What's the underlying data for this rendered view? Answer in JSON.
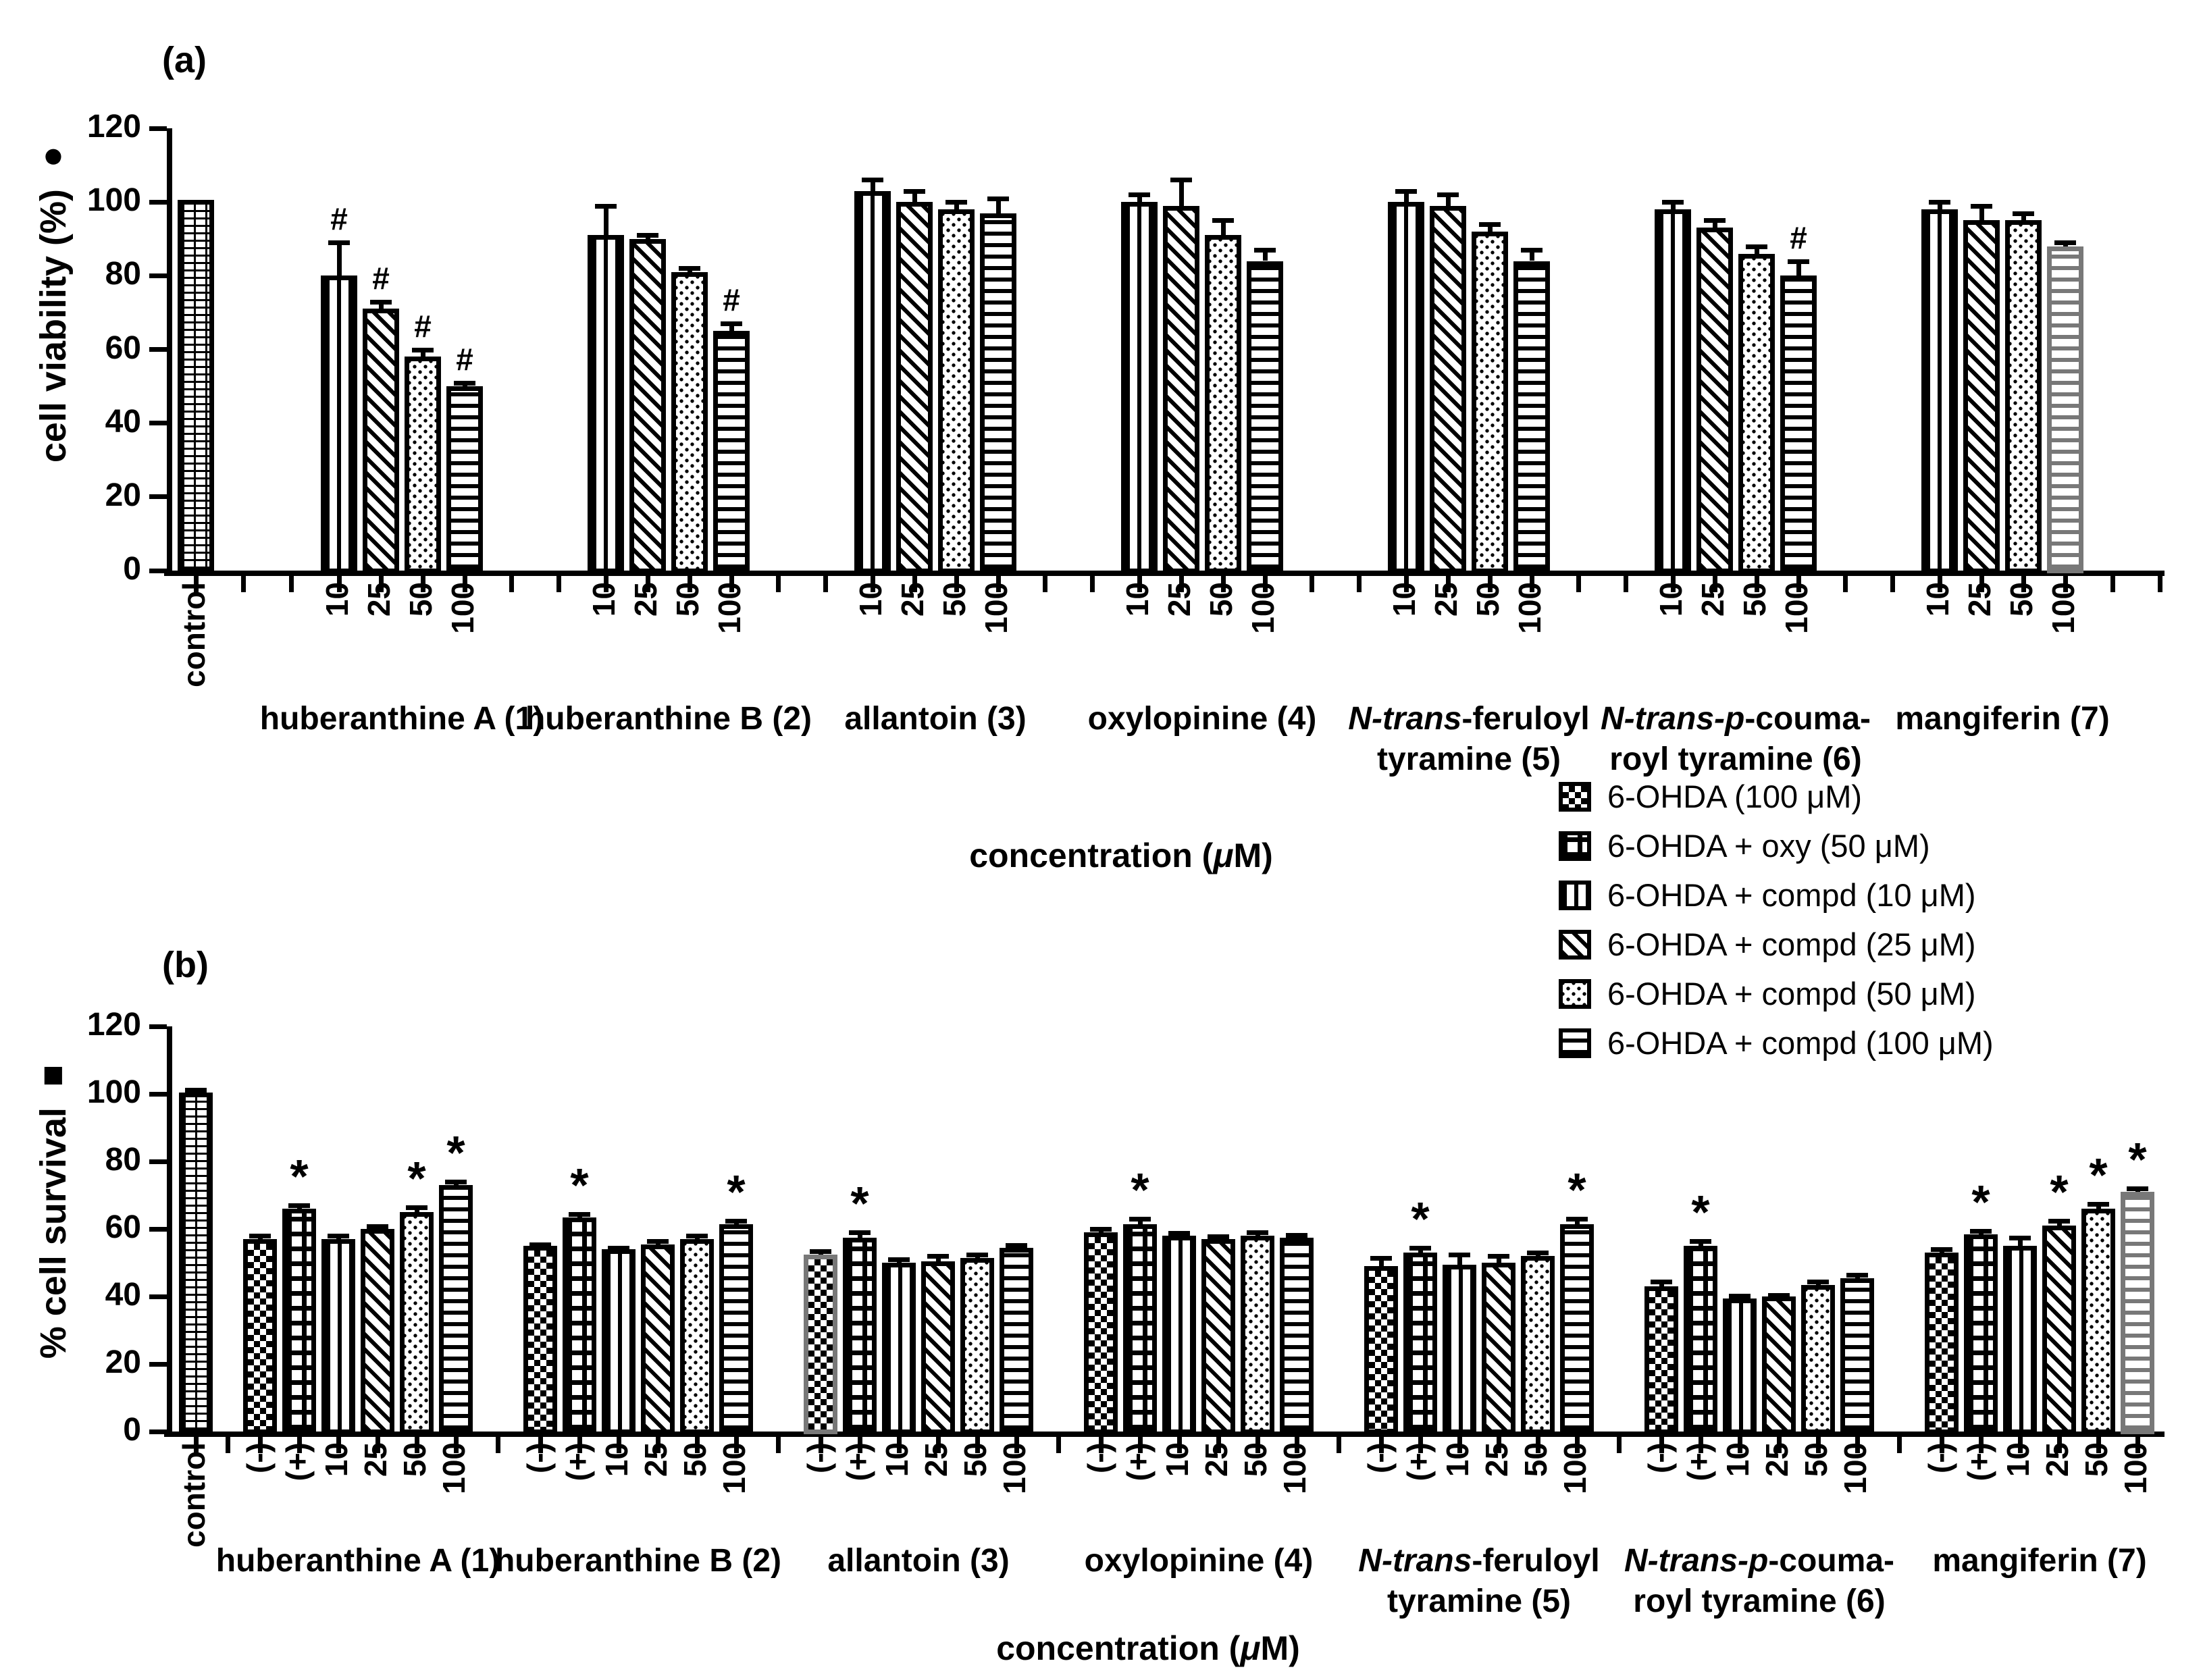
{
  "figure": {
    "panel_a_title": "(a)",
    "panel_b_title": "(b)"
  },
  "legend": {
    "items": [
      {
        "label": "6-OHDA (100 μM)",
        "pattern": "checker"
      },
      {
        "label": "6-OHDA + oxy (50 μM)",
        "pattern": "grid"
      },
      {
        "label": "6-OHDA + compd  (10 μM)",
        "pattern": "vlines"
      },
      {
        "label": "6-OHDA + compd  (25 μM)",
        "pattern": "diag"
      },
      {
        "label": "6-OHDA + compd  (50 μM)",
        "pattern": "dots"
      },
      {
        "label": "6-OHDA + compd  (100 μM)",
        "pattern": "hlines"
      }
    ]
  },
  "chart_data": [
    {
      "id": "a",
      "type": "bar",
      "ylabel": "cell viability (%) ●",
      "xlabel": "concentration (*μ*M)",
      "ylim": [
        0,
        120
      ],
      "yticks": [
        0,
        20,
        40,
        60,
        80,
        100,
        120
      ],
      "grid": false,
      "control": {
        "label": "control",
        "value": 100.5,
        "err": 0,
        "pattern": "brick"
      },
      "pattern_by_conc": {
        "10": "vlines",
        "25": "diag",
        "50": "dots",
        "100": "hlines"
      },
      "groups": [
        {
          "label_lines": [
            "huberanthine A  (1)"
          ],
          "bars": [
            {
              "conc": "10",
              "value": 80,
              "err": 9,
              "sig": "#"
            },
            {
              "conc": "25",
              "value": 71,
              "err": 2,
              "sig": "#"
            },
            {
              "conc": "50",
              "value": 58,
              "err": 2,
              "sig": "#"
            },
            {
              "conc": "100",
              "value": 50,
              "err": 1,
              "sig": "#"
            }
          ]
        },
        {
          "label_lines": [
            "huberanthine B (2)"
          ],
          "bars": [
            {
              "conc": "10",
              "value": 91,
              "err": 8
            },
            {
              "conc": "25",
              "value": 90,
              "err": 1
            },
            {
              "conc": "50",
              "value": 81,
              "err": 1
            },
            {
              "conc": "100",
              "value": 65,
              "err": 2,
              "sig": "#"
            }
          ]
        },
        {
          "label_lines": [
            "allantoin  (3)"
          ],
          "bars": [
            {
              "conc": "10",
              "value": 103,
              "err": 3
            },
            {
              "conc": "25",
              "value": 100,
              "err": 3
            },
            {
              "conc": "50",
              "value": 98,
              "err": 2
            },
            {
              "conc": "100",
              "value": 97,
              "err": 4
            }
          ]
        },
        {
          "label_lines": [
            "oxylopinine  (4)"
          ],
          "bars": [
            {
              "conc": "10",
              "value": 100,
              "err": 2
            },
            {
              "conc": "25",
              "value": 99,
              "err": 7
            },
            {
              "conc": "50",
              "value": 91,
              "err": 4
            },
            {
              "conc": "100",
              "value": 84,
              "err": 3
            }
          ]
        },
        {
          "label_lines": [
            "*N-trans*-feruloyl",
            "tyramine  (5)"
          ],
          "bars": [
            {
              "conc": "10",
              "value": 100,
              "err": 3
            },
            {
              "conc": "25",
              "value": 99,
              "err": 3
            },
            {
              "conc": "50",
              "value": 92,
              "err": 2
            },
            {
              "conc": "100",
              "value": 84,
              "err": 3
            }
          ]
        },
        {
          "label_lines": [
            "*N-trans-p*-couma-",
            "royl tyramine  (6)"
          ],
          "bars": [
            {
              "conc": "10",
              "value": 98,
              "err": 2
            },
            {
              "conc": "25",
              "value": 93,
              "err": 2
            },
            {
              "conc": "50",
              "value": 86,
              "err": 2
            },
            {
              "conc": "100",
              "value": 80,
              "err": 4,
              "sig": "#"
            }
          ]
        },
        {
          "label_lines": [
            "mangiferin (7)"
          ],
          "bars": [
            {
              "conc": "10",
              "value": 98,
              "err": 2
            },
            {
              "conc": "25",
              "value": 95,
              "err": 4
            },
            {
              "conc": "50",
              "value": 95,
              "err": 2
            },
            {
              "conc": "100",
              "value": 88,
              "err": 1,
              "gray": true
            }
          ]
        }
      ]
    },
    {
      "id": "b",
      "type": "bar",
      "ylabel": "% cell survival ■",
      "xlabel": "concentration (*μ*M)",
      "ylim": [
        0,
        120
      ],
      "yticks": [
        0,
        20,
        40,
        60,
        80,
        100,
        120
      ],
      "grid": false,
      "control": {
        "label": "control",
        "value": 100.5,
        "err": 0.8,
        "pattern": "brick"
      },
      "pattern_by_conc": {
        "(-)": "checker",
        "(+)": "grid",
        "10": "vlines",
        "25": "diag",
        "50": "dots",
        "100": "hlines"
      },
      "groups": [
        {
          "label_lines": [
            "huberanthine A  (1)"
          ],
          "bars": [
            {
              "conc": "(-)",
              "value": 57,
              "err": 1
            },
            {
              "conc": "(+)",
              "value": 66,
              "err": 1,
              "sig": "*"
            },
            {
              "conc": "10",
              "value": 57,
              "err": 1
            },
            {
              "conc": "25",
              "value": 60,
              "err": 0.8
            },
            {
              "conc": "50",
              "value": 65,
              "err": 1.5,
              "sig": "*"
            },
            {
              "conc": "100",
              "value": 73,
              "err": 1,
              "sig": "*"
            }
          ]
        },
        {
          "label_lines": [
            "huberanthine B (2)"
          ],
          "bars": [
            {
              "conc": "(-)",
              "value": 55,
              "err": 0.5
            },
            {
              "conc": "(+)",
              "value": 63.5,
              "err": 1,
              "sig": "*"
            },
            {
              "conc": "10",
              "value": 54,
              "err": 0.5
            },
            {
              "conc": "25",
              "value": 55.5,
              "err": 1
            },
            {
              "conc": "50",
              "value": 57,
              "err": 1
            },
            {
              "conc": "100",
              "value": 61.5,
              "err": 1,
              "sig": "*"
            }
          ]
        },
        {
          "label_lines": [
            "allantoin  (3)"
          ],
          "bars": [
            {
              "conc": "(-)",
              "value": 52.5,
              "err": 1,
              "gray_border": true
            },
            {
              "conc": "(+)",
              "value": 57.5,
              "err": 1.5,
              "sig": "*"
            },
            {
              "conc": "10",
              "value": 50,
              "err": 1
            },
            {
              "conc": "25",
              "value": 50.5,
              "err": 1.5
            },
            {
              "conc": "50",
              "value": 51.5,
              "err": 1
            },
            {
              "conc": "100",
              "value": 54.5,
              "err": 0.8
            }
          ]
        },
        {
          "label_lines": [
            "oxylopinine  (4)"
          ],
          "bars": [
            {
              "conc": "(-)",
              "value": 59,
              "err": 1
            },
            {
              "conc": "(+)",
              "value": 61.5,
              "err": 1.5,
              "sig": "*"
            },
            {
              "conc": "10",
              "value": 58,
              "err": 0.8
            },
            {
              "conc": "25",
              "value": 57,
              "err": 0.8
            },
            {
              "conc": "50",
              "value": 58,
              "err": 1
            },
            {
              "conc": "100",
              "value": 57.5,
              "err": 0.8
            }
          ]
        },
        {
          "label_lines": [
            "*N-trans*-feruloyl",
            "tyramine  (5)"
          ],
          "bars": [
            {
              "conc": "(-)",
              "value": 49,
              "err": 2.5
            },
            {
              "conc": "(+)",
              "value": 53,
              "err": 1.5,
              "sig": "*"
            },
            {
              "conc": "10",
              "value": 49.5,
              "err": 3
            },
            {
              "conc": "25",
              "value": 50,
              "err": 2
            },
            {
              "conc": "50",
              "value": 52,
              "err": 1
            },
            {
              "conc": "100",
              "value": 61.5,
              "err": 1.5,
              "sig": "*"
            }
          ]
        },
        {
          "label_lines": [
            "*N-trans-p*-couma-",
            "royl tyramine (6)"
          ],
          "bars": [
            {
              "conc": "(-)",
              "value": 43,
              "err": 1.5
            },
            {
              "conc": "(+)",
              "value": 55,
              "err": 1.5,
              "sig": "*"
            },
            {
              "conc": "10",
              "value": 39.5,
              "err": 0.8
            },
            {
              "conc": "25",
              "value": 40,
              "err": 0.5
            },
            {
              "conc": "50",
              "value": 43.5,
              "err": 1
            },
            {
              "conc": "100",
              "value": 45.5,
              "err": 1
            }
          ]
        },
        {
          "label_lines": [
            "mangiferin (7)"
          ],
          "bars": [
            {
              "conc": "(-)",
              "value": 53,
              "err": 1
            },
            {
              "conc": "(+)",
              "value": 58.5,
              "err": 1,
              "sig": "*"
            },
            {
              "conc": "10",
              "value": 55,
              "err": 2.5
            },
            {
              "conc": "25",
              "value": 61,
              "err": 1.5,
              "sig": "*"
            },
            {
              "conc": "50",
              "value": 66,
              "err": 1.5,
              "sig": "*"
            },
            {
              "conc": "100",
              "value": 71,
              "err": 1,
              "sig": "*",
              "gray": true
            }
          ]
        }
      ]
    }
  ]
}
